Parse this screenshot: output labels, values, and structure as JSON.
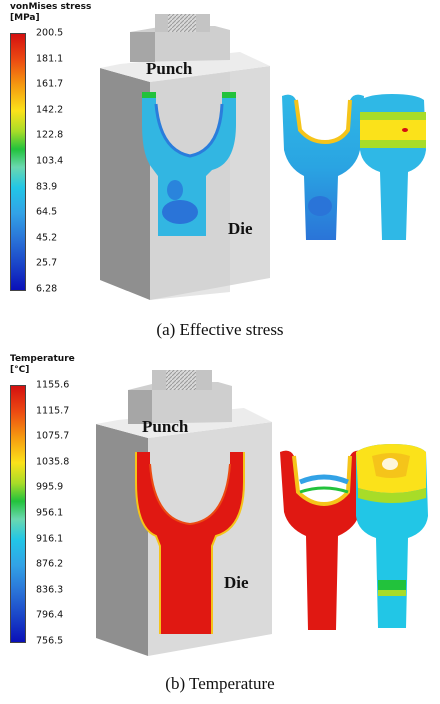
{
  "panels": [
    {
      "legend": {
        "title_line1": "vonMises stress",
        "title_line2": "[MPa]",
        "values": [
          "200.5",
          "181.1",
          "161.7",
          "142.2",
          "122.8",
          "103.4",
          "83.9",
          "64.5",
          "45.2",
          "25.7",
          "6.28"
        ]
      },
      "labels": {
        "punch": "Punch",
        "die": "Die"
      },
      "caption": "(a) Effective stress"
    },
    {
      "legend": {
        "title_line1": "Temperature",
        "title_line2": "[°C]",
        "values": [
          "1155.6",
          "1115.7",
          "1075.7",
          "1035.8",
          "995.9",
          "956.1",
          "916.1",
          "876.2",
          "836.3",
          "796.4",
          "756.5"
        ]
      },
      "labels": {
        "punch": "Punch",
        "die": "Die"
      },
      "caption": "(b) Temperature"
    }
  ],
  "colors": {
    "die_light": "#e2e2e2",
    "die_mid": "#c9c9c9",
    "die_dark": "#9c9c9c",
    "scale": [
      "#d41010",
      "#ec4a12",
      "#f59a10",
      "#fbe21a",
      "#22c23c",
      "#6ad8b0",
      "#22c6e6",
      "#32a2e6",
      "#2a74d8",
      "#1a44c8",
      "#0a10b8"
    ]
  }
}
